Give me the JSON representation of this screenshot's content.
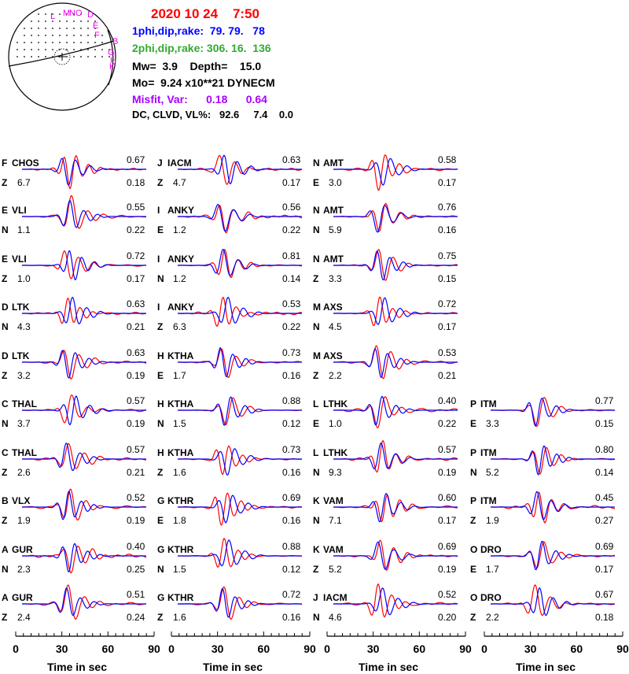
{
  "header": {
    "date_time": "2020 10 24    7:50",
    "plane1": "1phi,dip,rake:  79. 79.   78",
    "plane2": "2phi,dip,rake: 306. 16.  136",
    "mw_depth": "Mw=  3.9    Depth=    15.0",
    "mo": "Mo=  9.24 x10**21 DYNECM",
    "misfit": "Misfit, Var:      0.18      0.64",
    "dc_clvd": "DC, CLVD, VL%:   92.6     7.4    0.0"
  },
  "beachball": {
    "labels": [
      "L",
      "M",
      "N",
      "O",
      "D",
      "E",
      "F",
      "B",
      "G",
      "H",
      "K"
    ]
  },
  "colors": {
    "observed": "#ff0000",
    "synthetic": "#0000ff",
    "title": "#ff0000",
    "plane1": "#0000ff",
    "plane2": "#33aa33",
    "misfit": "#aa00ff",
    "station_label": "#ee00ee"
  },
  "chart_data": {
    "type": "line",
    "xlabel": "Time  in sec",
    "xlim": [
      0,
      90
    ],
    "xticks": [
      "0",
      "30",
      "60",
      "90"
    ],
    "series_legend": [
      "observed (red)",
      "synthetic (blue)"
    ],
    "columns": [
      [
        {
          "code": "F",
          "station": "CHOS",
          "comp": "Z",
          "dist": "6.7",
          "corr": "0.67",
          "amp": "0.18"
        },
        {
          "code": "E",
          "station": "VLI",
          "comp": "N",
          "dist": "1.1",
          "corr": "0.55",
          "amp": "0.22"
        },
        {
          "code": "E",
          "station": "VLI",
          "comp": "Z",
          "dist": "1.0",
          "corr": "0.72",
          "amp": "0.17"
        },
        {
          "code": "D",
          "station": "LTK",
          "comp": "N",
          "dist": "4.3",
          "corr": "0.63",
          "amp": "0.21"
        },
        {
          "code": "D",
          "station": "LTK",
          "comp": "Z",
          "dist": "3.2",
          "corr": "0.63",
          "amp": "0.19"
        },
        {
          "code": "C",
          "station": "THAL",
          "comp": "N",
          "dist": "3.7",
          "corr": "0.57",
          "amp": "0.19"
        },
        {
          "code": "C",
          "station": "THAL",
          "comp": "Z",
          "dist": "2.6",
          "corr": "0.57",
          "amp": "0.21"
        },
        {
          "code": "B",
          "station": "VLX",
          "comp": "Z",
          "dist": "1.9",
          "corr": "0.52",
          "amp": "0.19"
        },
        {
          "code": "A",
          "station": "GUR",
          "comp": "N",
          "dist": "2.3",
          "corr": "0.40",
          "amp": "0.25"
        },
        {
          "code": "A",
          "station": "GUR",
          "comp": "Z",
          "dist": "2.4",
          "corr": "0.51",
          "amp": "0.24"
        }
      ],
      [
        {
          "code": "J",
          "station": "IACM",
          "comp": "Z",
          "dist": "4.7",
          "corr": "0.63",
          "amp": "0.17"
        },
        {
          "code": "I",
          "station": "ANKY",
          "comp": "E",
          "dist": "1.2",
          "corr": "0.56",
          "amp": "0.22"
        },
        {
          "code": "I",
          "station": "ANKY",
          "comp": "N",
          "dist": "1.2",
          "corr": "0.81",
          "amp": "0.14"
        },
        {
          "code": "I",
          "station": "ANKY",
          "comp": "Z",
          "dist": "6.3",
          "corr": "0.53",
          "amp": "0.22"
        },
        {
          "code": "H",
          "station": "KTHA",
          "comp": "E",
          "dist": "1.7",
          "corr": "0.73",
          "amp": "0.16"
        },
        {
          "code": "H",
          "station": "KTHA",
          "comp": "N",
          "dist": "1.5",
          "corr": "0.88",
          "amp": "0.12"
        },
        {
          "code": "H",
          "station": "KTHA",
          "comp": "Z",
          "dist": "1.6",
          "corr": "0.73",
          "amp": "0.16"
        },
        {
          "code": "G",
          "station": "KTHR",
          "comp": "E",
          "dist": "1.8",
          "corr": "0.69",
          "amp": "0.16"
        },
        {
          "code": "G",
          "station": "KTHR",
          "comp": "N",
          "dist": "1.5",
          "corr": "0.88",
          "amp": "0.12"
        },
        {
          "code": "G",
          "station": "KTHR",
          "comp": "Z",
          "dist": "1.6",
          "corr": "0.72",
          "amp": "0.16"
        }
      ],
      [
        {
          "code": "N",
          "station": "AMT",
          "comp": "E",
          "dist": "3.0",
          "corr": "0.58",
          "amp": "0.17"
        },
        {
          "code": "N",
          "station": "AMT",
          "comp": "N",
          "dist": "5.9",
          "corr": "0.76",
          "amp": "0.16"
        },
        {
          "code": "N",
          "station": "AMT",
          "comp": "Z",
          "dist": "3.3",
          "corr": "0.75",
          "amp": "0.15"
        },
        {
          "code": "M",
          "station": "AXS",
          "comp": "N",
          "dist": "4.5",
          "corr": "0.72",
          "amp": "0.17"
        },
        {
          "code": "M",
          "station": "AXS",
          "comp": "Z",
          "dist": "2.2",
          "corr": "0.53",
          "amp": "0.21"
        },
        {
          "code": "L",
          "station": "LTHK",
          "comp": "E",
          "dist": "1.0",
          "corr": "0.40",
          "amp": "0.22"
        },
        {
          "code": "L",
          "station": "LTHK",
          "comp": "N",
          "dist": "9.3",
          "corr": "0.57",
          "amp": "0.19"
        },
        {
          "code": "K",
          "station": "VAM",
          "comp": "N",
          "dist": "7.1",
          "corr": "0.60",
          "amp": "0.17"
        },
        {
          "code": "K",
          "station": "VAM",
          "comp": "Z",
          "dist": "5.2",
          "corr": "0.69",
          "amp": "0.19"
        },
        {
          "code": "J",
          "station": "IACM",
          "comp": "N",
          "dist": "4.6",
          "corr": "0.52",
          "amp": "0.20"
        }
      ],
      [
        null,
        null,
        null,
        null,
        null,
        {
          "code": "P",
          "station": "ITM",
          "comp": "E",
          "dist": "3.3",
          "corr": "0.77",
          "amp": "0.15"
        },
        {
          "code": "P",
          "station": "ITM",
          "comp": "N",
          "dist": "5.2",
          "corr": "0.80",
          "amp": "0.14"
        },
        {
          "code": "P",
          "station": "ITM",
          "comp": "Z",
          "dist": "1.9",
          "corr": "0.45",
          "amp": "0.27"
        },
        {
          "code": "O",
          "station": "DRO",
          "comp": "E",
          "dist": "1.7",
          "corr": "0.69",
          "amp": "0.17"
        },
        {
          "code": "O",
          "station": "DRO",
          "comp": "Z",
          "dist": "2.2",
          "corr": "0.67",
          "amp": "0.18"
        }
      ]
    ]
  }
}
